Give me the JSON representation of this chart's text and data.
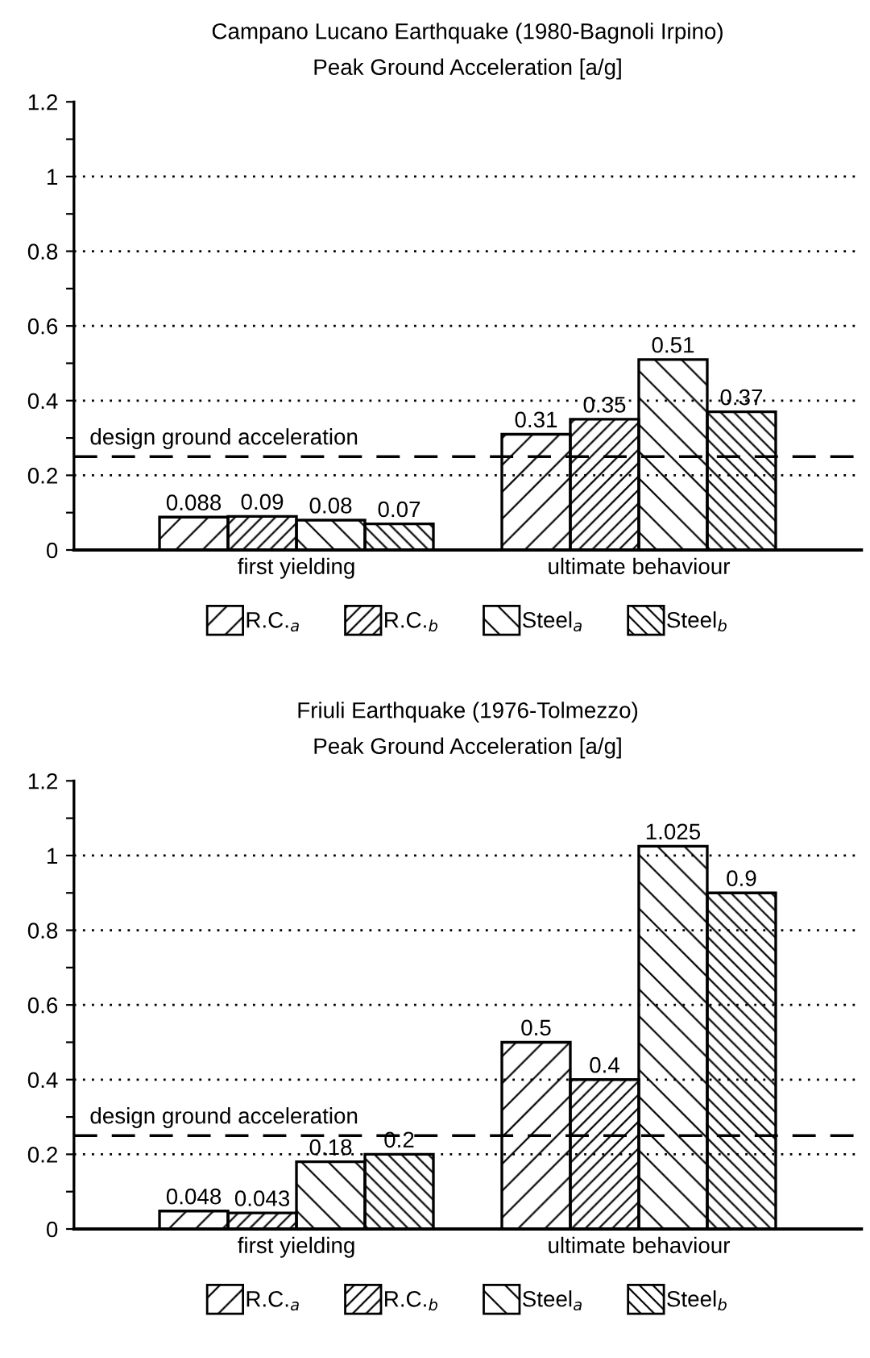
{
  "chart_data": [
    {
      "type": "bar",
      "title": "Campano Lucano Earthquake (1980-Bagnoli Irpino)",
      "subtitle": "Peak Ground Acceleration [a/g]",
      "categories": [
        "first yielding",
        "ultimate behaviour"
      ],
      "series": [
        {
          "name": "R.C.$_{a}$",
          "color": "#000000",
          "values": [
            0.088,
            0.31
          ]
        },
        {
          "name": "R.C.$_{b}$",
          "color": "#000000",
          "values": [
            0.09,
            0.35
          ]
        },
        {
          "name": "Steel$_{a}$",
          "color": "#000000",
          "values": [
            0.08,
            0.51
          ]
        },
        {
          "name": "Steel$_{b}$",
          "color": "#000000",
          "values": [
            0.07,
            0.37
          ]
        }
      ],
      "ylim": [
        0,
        1.2
      ],
      "yticks": [
        0,
        {
          "value": 0.1,
          "label": null
        },
        0.2,
        {
          "value": 0.3,
          "label": null
        },
        0.4,
        {
          "value": 0.5,
          "label": null
        },
        0.6,
        {
          "value": 0.7,
          "label": null
        },
        0.8,
        {
          "value": 0.9,
          "label": null
        },
        1,
        {
          "value": 1.1,
          "label": null
        },
        1.2
      ],
      "ref_lines": [
        {
          "axis": "y",
          "value": 0.25,
          "label": "design ground acceleration",
          "line_style": "dashed",
          "color": "#000000"
        }
      ],
      "grid": "y",
      "legend": "bottom",
      "data_labels": true
    },
    {
      "type": "bar",
      "title": "Friuli Earthquake (1976-Tolmezzo)",
      "subtitle": "Peak Ground Acceleration [a/g]",
      "categories": [
        "first yielding",
        "ultimate behaviour"
      ],
      "series": [
        {
          "name": "R.C.$_{a}$",
          "color": "#000000",
          "values": [
            0.048,
            0.5
          ]
        },
        {
          "name": "R.C.$_{b}$",
          "color": "#000000",
          "values": [
            0.043,
            0.4
          ]
        },
        {
          "name": "Steel$_{a}$",
          "color": "#000000",
          "values": [
            0.18,
            1.025
          ]
        },
        {
          "name": "Steel$_{b}$",
          "color": "#000000",
          "values": [
            0.2,
            0.9
          ]
        }
      ],
      "ylim": [
        0,
        1.2
      ],
      "yticks": [
        0,
        {
          "value": 0.1,
          "label": null
        },
        0.2,
        {
          "value": 0.3,
          "label": null
        },
        0.4,
        {
          "value": 0.5,
          "label": null
        },
        0.6,
        {
          "value": 0.7,
          "label": null
        },
        0.8,
        {
          "value": 0.9,
          "label": null
        },
        1,
        {
          "value": 1.1,
          "label": null
        },
        1.2
      ],
      "ref_lines": [
        {
          "axis": "y",
          "value": 0.25,
          "label": "design ground acceleration",
          "line_style": "dashed",
          "color": "#000000"
        }
      ],
      "grid": "y",
      "legend": "bottom",
      "data_labels": true
    }
  ]
}
